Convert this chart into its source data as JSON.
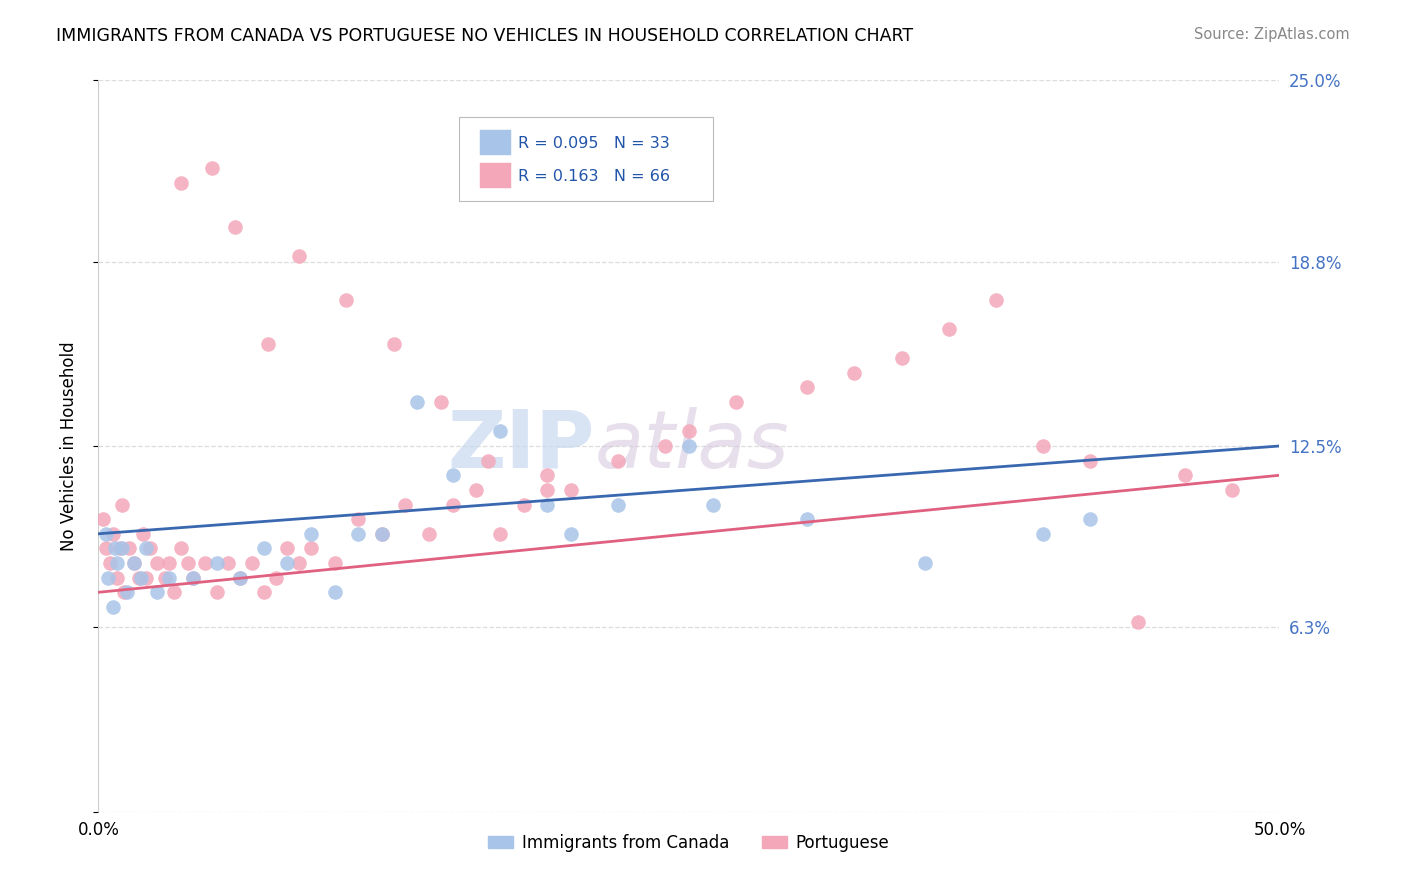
{
  "title": "IMMIGRANTS FROM CANADA VS PORTUGUESE NO VEHICLES IN HOUSEHOLD CORRELATION CHART",
  "source": "Source: ZipAtlas.com",
  "ylabel": "No Vehicles in Household",
  "xlim": [
    0.0,
    50.0
  ],
  "ylim": [
    0.0,
    25.0
  ],
  "yticks": [
    0.0,
    6.3,
    12.5,
    18.8,
    25.0
  ],
  "ytick_labels": [
    "",
    "6.3%",
    "12.5%",
    "18.8%",
    "25.0%"
  ],
  "xticks": [
    0.0,
    12.5,
    25.0,
    37.5,
    50.0
  ],
  "xtick_labels": [
    "0.0%",
    "",
    "",
    "",
    "50.0%"
  ],
  "canada_color": "#a8c4e8",
  "portuguese_color": "#f4a7b9",
  "canada_R": 0.095,
  "canada_N": 33,
  "portuguese_R": 0.163,
  "portuguese_N": 66,
  "canada_trend_color": "#3a68b0",
  "portuguese_trend_color": "#e06080",
  "watermark_zip": "ZIP",
  "watermark_atlas": "atlas",
  "background_color": "#ffffff",
  "grid_color": "#dddddd",
  "right_tick_color": "#4472c4",
  "legend_R_color": "#2255aa",
  "legend_N_color": "#2255aa",
  "canada_x": [
    0.3,
    0.4,
    0.6,
    0.7,
    0.8,
    1.0,
    1.2,
    1.5,
    1.8,
    2.0,
    2.5,
    3.0,
    4.0,
    5.0,
    6.0,
    7.0,
    8.0,
    9.0,
    10.0,
    11.0,
    12.0,
    13.5,
    15.0,
    17.0,
    19.0,
    20.0,
    22.0,
    25.0,
    26.0,
    30.0,
    35.0,
    40.0,
    42.0
  ],
  "canada_y": [
    9.5,
    8.0,
    7.0,
    9.0,
    8.5,
    9.0,
    7.5,
    8.5,
    8.0,
    9.0,
    7.5,
    8.0,
    8.0,
    8.5,
    8.0,
    9.0,
    8.5,
    9.5,
    7.5,
    9.5,
    9.5,
    14.0,
    11.5,
    13.0,
    10.5,
    9.5,
    10.5,
    12.5,
    10.5,
    10.0,
    8.5,
    9.5,
    10.0
  ],
  "portuguese_x": [
    0.2,
    0.3,
    0.5,
    0.6,
    0.8,
    0.9,
    1.0,
    1.1,
    1.3,
    1.5,
    1.7,
    1.9,
    2.0,
    2.2,
    2.5,
    2.8,
    3.0,
    3.2,
    3.5,
    3.8,
    4.0,
    4.5,
    5.0,
    5.5,
    6.0,
    6.5,
    7.0,
    7.5,
    8.0,
    8.5,
    9.0,
    10.0,
    11.0,
    12.0,
    13.0,
    14.0,
    15.0,
    16.0,
    17.0,
    18.0,
    19.0,
    20.0,
    22.0,
    24.0,
    25.0,
    27.0,
    30.0,
    32.0,
    34.0,
    36.0,
    38.0,
    40.0,
    42.0,
    44.0,
    46.0,
    48.0,
    3.5,
    4.8,
    5.8,
    7.2,
    8.5,
    10.5,
    12.5,
    14.5,
    16.5,
    19.0
  ],
  "portuguese_y": [
    10.0,
    9.0,
    8.5,
    9.5,
    8.0,
    9.0,
    10.5,
    7.5,
    9.0,
    8.5,
    8.0,
    9.5,
    8.0,
    9.0,
    8.5,
    8.0,
    8.5,
    7.5,
    9.0,
    8.5,
    8.0,
    8.5,
    7.5,
    8.5,
    8.0,
    8.5,
    7.5,
    8.0,
    9.0,
    8.5,
    9.0,
    8.5,
    10.0,
    9.5,
    10.5,
    9.5,
    10.5,
    11.0,
    9.5,
    10.5,
    11.5,
    11.0,
    12.0,
    12.5,
    13.0,
    14.0,
    14.5,
    15.0,
    15.5,
    16.5,
    17.5,
    12.5,
    12.0,
    6.5,
    11.5,
    11.0,
    21.5,
    22.0,
    20.0,
    16.0,
    19.0,
    17.5,
    16.0,
    14.0,
    12.0,
    11.0
  ]
}
